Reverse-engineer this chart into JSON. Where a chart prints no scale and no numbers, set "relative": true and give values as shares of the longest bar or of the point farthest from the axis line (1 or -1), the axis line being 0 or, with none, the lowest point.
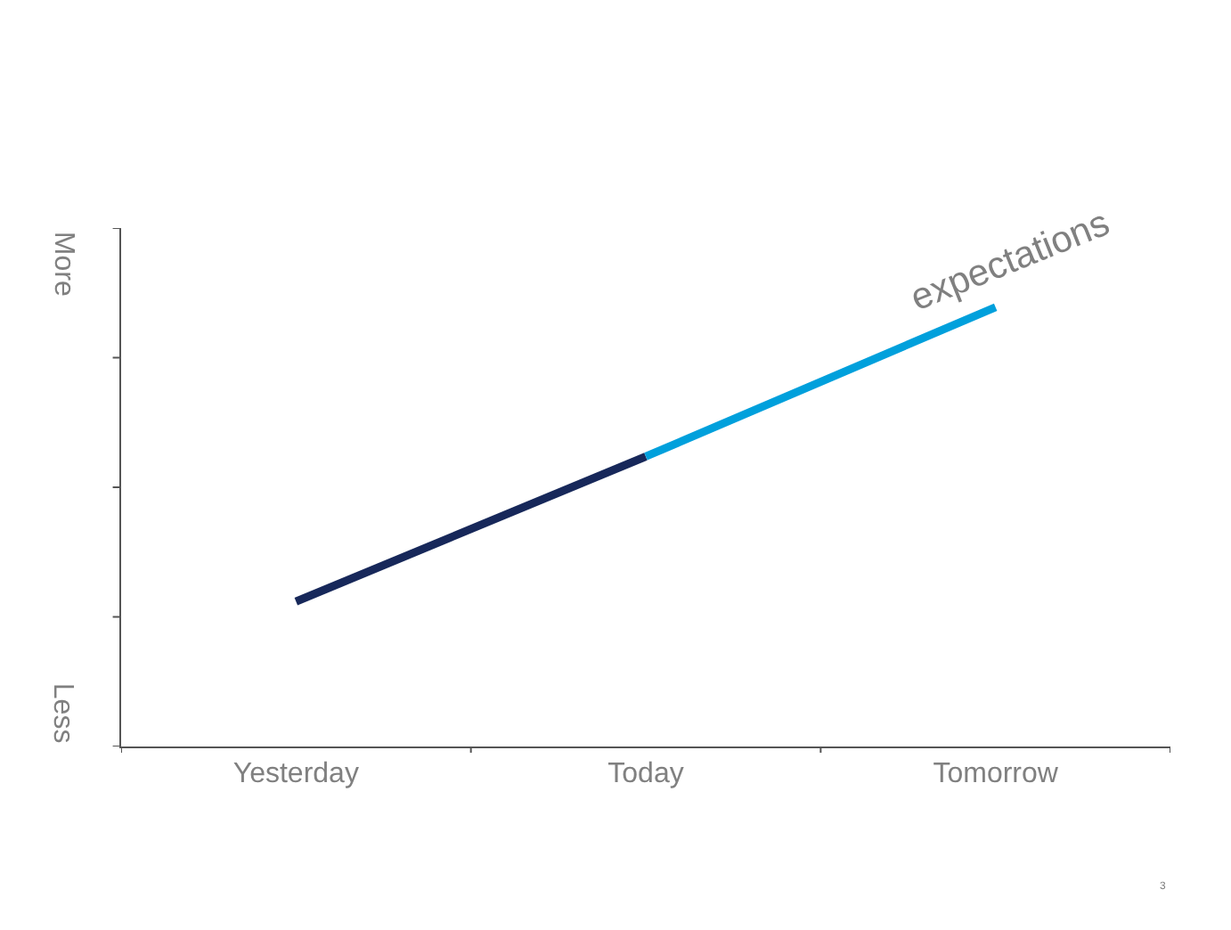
{
  "chart_data": {
    "type": "line",
    "relative": true,
    "categories": [
      "Yesterday",
      "Today",
      "Tomorrow"
    ],
    "series": [
      {
        "color": "#17285a",
        "values": [
          0.33,
          0.66,
          null
        ]
      },
      {
        "name": "expectations",
        "color": "#00a0dc",
        "values": [
          null,
          0.66,
          1
        ]
      }
    ],
    "annotations": [
      "More",
      "Less",
      "3"
    ],
    "legend": false,
    "marker": "none",
    "line_style": "solid"
  }
}
